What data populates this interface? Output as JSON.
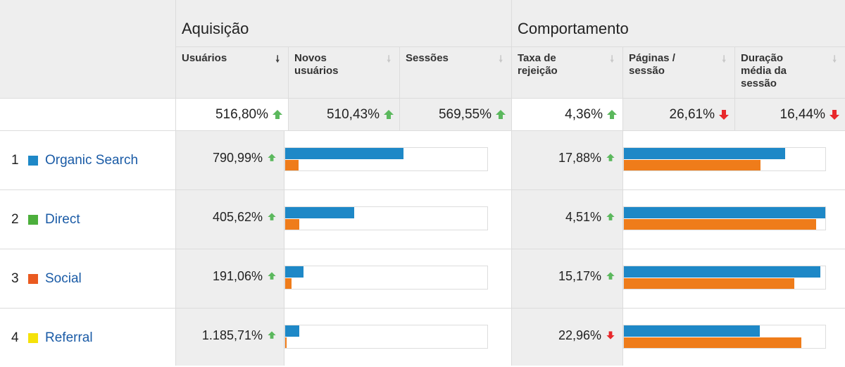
{
  "colors": {
    "blue_bar": "#1e88c7",
    "orange_bar": "#ef7c1a",
    "up_arrow": "#5bb85d",
    "down_arrow": "#e8282b",
    "link": "#1a5ba6"
  },
  "groups": {
    "acquisition": "Aquisição",
    "behavior": "Comportamento"
  },
  "columns": [
    {
      "label": "Usuários",
      "sort_icon": "sort-down-icon",
      "active": true
    },
    {
      "label": "Novos usuários",
      "sort_icon": "sort-down-icon",
      "active": false
    },
    {
      "label": "Sessões",
      "sort_icon": "sort-down-icon",
      "active": false
    },
    {
      "label": "Taxa de rejeição",
      "sort_icon": "sort-down-icon",
      "active": false
    },
    {
      "label": "Páginas / sessão",
      "sort_icon": "sort-down-icon",
      "active": false
    },
    {
      "label": "Duração média da sessão",
      "sort_icon": "sort-down-icon",
      "active": false
    }
  ],
  "summary": [
    {
      "value": "516,80%",
      "trend": "up"
    },
    {
      "value": "510,43%",
      "trend": "up"
    },
    {
      "value": "569,55%",
      "trend": "up"
    },
    {
      "value": "4,36%",
      "trend": "up"
    },
    {
      "value": "26,61%",
      "trend": "down"
    },
    {
      "value": "16,44%",
      "trend": "down"
    }
  ],
  "rows": [
    {
      "index": "1",
      "channel": "Organic Search",
      "swatch_color": "#1e88c7",
      "users_change": "790,99%",
      "users_trend": "up",
      "users_bar_current": 0.58,
      "users_bar_previous": 0.065,
      "bounce_change": "17,88%",
      "bounce_trend": "up",
      "bounce_bar_current": 0.8,
      "bounce_bar_previous": 0.68
    },
    {
      "index": "2",
      "channel": "Direct",
      "swatch_color": "#4caf3c",
      "users_change": "405,62%",
      "users_trend": "up",
      "users_bar_current": 0.34,
      "users_bar_previous": 0.07,
      "bounce_change": "4,51%",
      "bounce_trend": "up",
      "bounce_bar_current": 1.0,
      "bounce_bar_previous": 0.955
    },
    {
      "index": "3",
      "channel": "Social",
      "swatch_color": "#ea5a20",
      "users_change": "191,06%",
      "users_trend": "up",
      "users_bar_current": 0.09,
      "users_bar_previous": 0.03,
      "bounce_change": "15,17%",
      "bounce_trend": "up",
      "bounce_bar_current": 0.975,
      "bounce_bar_previous": 0.845
    },
    {
      "index": "4",
      "channel": "Referral",
      "swatch_color": "#f5e20a",
      "users_change": "1.185,71%",
      "users_trend": "up",
      "users_bar_current": 0.07,
      "users_bar_previous": 0.006,
      "bounce_change": "22,96%",
      "bounce_trend": "down",
      "bounce_bar_current": 0.675,
      "bounce_bar_previous": 0.88
    }
  ]
}
